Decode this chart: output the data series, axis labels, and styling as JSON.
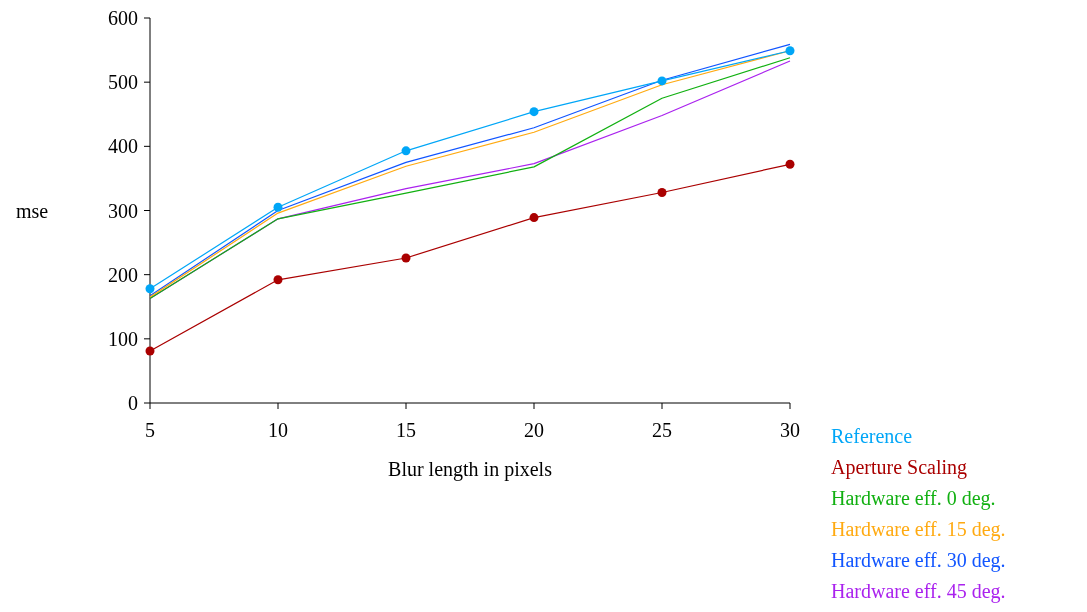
{
  "chart_data": {
    "type": "line",
    "xlabel": "Blur length in pixels",
    "ylabel": "mse",
    "x": [
      5,
      10,
      15,
      20,
      25,
      30
    ],
    "xlim": [
      5,
      30
    ],
    "xticks": [
      5,
      10,
      15,
      20,
      25,
      30
    ],
    "ylim": [
      0,
      600
    ],
    "yticks": [
      0,
      100,
      200,
      300,
      400,
      500,
      600
    ],
    "grid": false,
    "legend": "bottom right",
    "line_style": "solid",
    "series": [
      {
        "name": "Reference",
        "color": "#00a6f7",
        "marker": "circle",
        "values": [
          178,
          305,
          393,
          454,
          502,
          549
        ]
      },
      {
        "name": "Aperture Scaling",
        "color": "#aa0000",
        "marker": "circle",
        "values": [
          81,
          192,
          226,
          289,
          328,
          372
        ]
      },
      {
        "name": "Hardware eff. 0 deg.",
        "color": "#11b011",
        "marker": "none",
        "values": [
          163,
          287,
          327,
          368,
          475,
          538
        ]
      },
      {
        "name": "Hardware eff. 15 deg.",
        "color": "#ffaa11",
        "marker": "none",
        "values": [
          165,
          296,
          369,
          422,
          496,
          549
        ]
      },
      {
        "name": "Hardware eff. 30 deg.",
        "color": "#1155ff",
        "marker": "none",
        "values": [
          167,
          300,
          375,
          429,
          503,
          559
        ]
      },
      {
        "name": "Hardware eff. 45 deg.",
        "color": "#aa22ee",
        "marker": "none",
        "values": [
          163,
          287,
          334,
          373,
          448,
          533
        ]
      }
    ]
  }
}
